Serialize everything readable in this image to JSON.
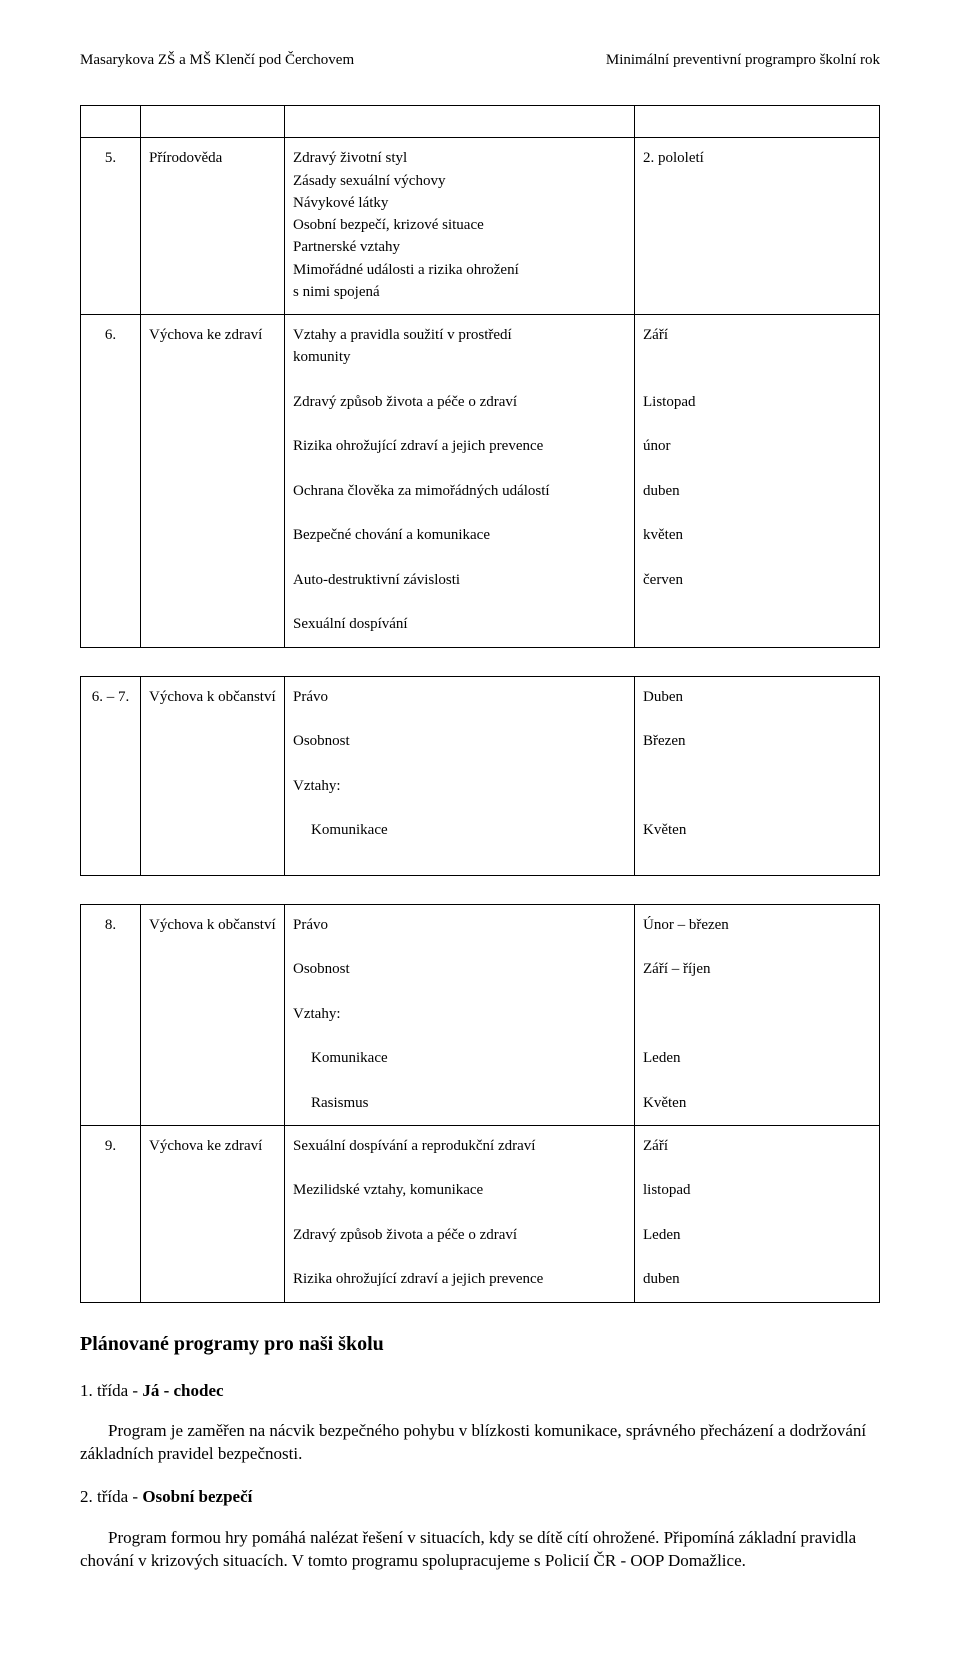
{
  "header": {
    "left": "Masarykova ZŠ a MŠ Klenčí pod Čerchovem",
    "right": "Minimální preventivní programpro školní rok"
  },
  "table1": {
    "rows": [
      {
        "num": "5.",
        "subject": "Přírodověda",
        "topics": [
          "Zdravý životní styl",
          "Zásady sexuální výchovy",
          "Návykové látky",
          "Osobní bezpečí, krizové situace",
          "Partnerské vztahy",
          "Mimořádné události a rizika ohrožení",
          "s nimi spojená"
        ],
        "months": [
          "2. pololetí"
        ]
      },
      {
        "num": "6.",
        "subject": "Výchova ke zdraví",
        "topics": [
          "Vztahy a pravidla soužití v prostředí",
          "komunity",
          "",
          "Zdravý způsob života a péče o zdraví",
          "",
          "Rizika ohrožující zdraví a jejich prevence",
          "",
          "Ochrana člověka za mimořádných událostí",
          "",
          "Bezpečné chování a komunikace",
          "",
          "Auto-destruktivní závislosti",
          "",
          "Sexuální dospívání"
        ],
        "months": [
          "Září",
          "",
          "",
          "Listopad",
          "",
          "únor",
          "",
          "duben",
          "",
          "květen",
          "",
          "červen"
        ]
      }
    ]
  },
  "table2": {
    "rows": [
      {
        "num": "6. – 7.",
        "subject": "Výchova k občanství",
        "topics": [
          "Právo",
          "",
          "Osobnost",
          "",
          "Vztahy:",
          "",
          "Komunikace"
        ],
        "months": [
          "Duben",
          "",
          "Březen",
          "",
          "",
          "",
          "Květen"
        ]
      }
    ]
  },
  "table3": {
    "rows": [
      {
        "num": "8.",
        "subject": "Výchova k občanství",
        "topics": [
          "Právo",
          "",
          "Osobnost",
          "",
          "Vztahy:",
          "",
          "Komunikace",
          "",
          "Rasismus"
        ],
        "months": [
          "Únor – březen",
          "",
          "Září – říjen",
          "",
          "",
          "",
          "Leden",
          "",
          "Květen"
        ]
      },
      {
        "num": "9.",
        "subject": "Výchova ke zdraví",
        "topics": [
          "Sexuální dospívání a reprodukční zdraví",
          "",
          "Mezilidské vztahy, komunikace",
          "",
          "Zdravý způsob života a péče o zdraví",
          "",
          "Rizika ohrožující zdraví a jejich prevence"
        ],
        "months": [
          "Září",
          "",
          "listopad",
          "",
          "Leden",
          "",
          "duben"
        ]
      }
    ]
  },
  "section_heading": "Plánované programy pro naši školu",
  "item1_label": "1. třída - ",
  "item1_bold": "Já - chodec",
  "item1_para": "Program je zaměřen na nácvik bezpečného pohybu v blízkosti komunikace, správného přecházení a dodržování základních pravidel bezpečnosti.",
  "item2_label": "2. třída - ",
  "item2_bold": "Osobní bezpečí",
  "item2_para": "Program formou hry pomáhá nalézat řešení v situacích, kdy se dítě cítí ohrožené. Připomíná základní pravidla chování v krizových situacích. V tomto programu spolupracujeme s Policií ČR - OOP Domažlice."
}
